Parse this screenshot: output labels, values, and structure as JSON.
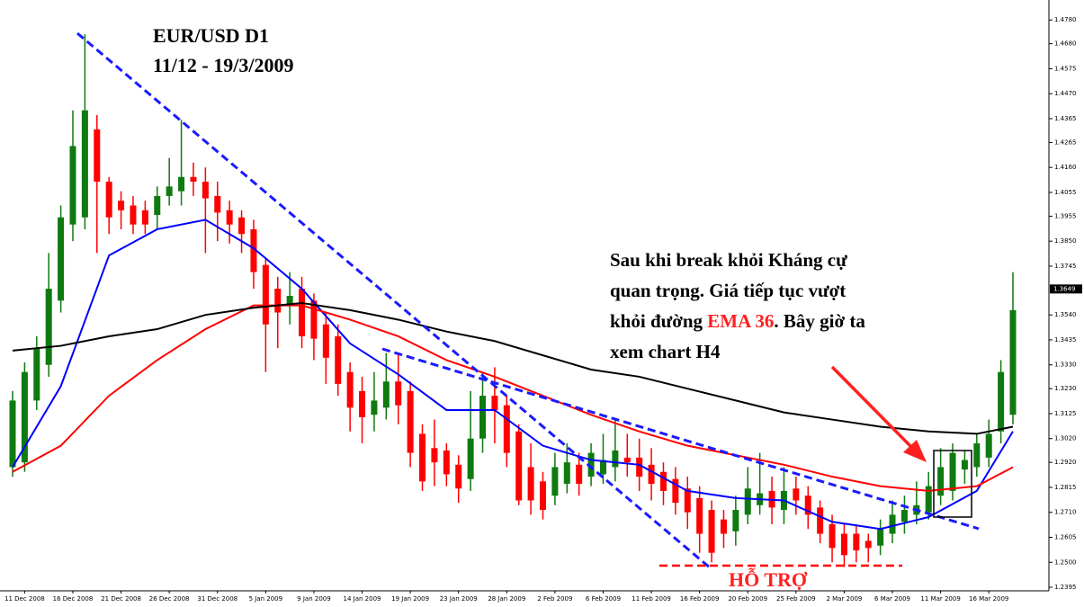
{
  "chart_data": {
    "type": "candlestick",
    "title": "EUR/USD D1",
    "subtitle": "11/12 - 19/3/2009",
    "annotation": [
      "Sau khi break khỏi Kháng cự",
      "quan trọng. Giá tiếp tục vượt",
      "khỏi đường ",
      "EMA 36",
      ". Bây giờ ta",
      "xem chart H4"
    ],
    "support_label": "HỖ TRỢ",
    "up_color": "#0f7a0f",
    "down_color": "#ff0000",
    "categories": [
      null,
      "11 Dec 2008",
      null,
      null,
      null,
      "16 Dec 2008",
      null,
      null,
      null,
      "21 Dec 2008",
      null,
      null,
      null,
      "26 Dec 2008",
      null,
      null,
      null,
      "31 Dec 2008",
      null,
      null,
      null,
      "5 Jan 2009",
      null,
      null,
      null,
      "9 Jan 2009",
      null,
      null,
      null,
      "14 Jan 2009",
      null,
      null,
      null,
      "19 Jan 2009",
      null,
      null,
      null,
      "23 Jan 2009",
      null,
      null,
      null,
      "28 Jan 2009",
      null,
      null,
      null,
      "2 Feb 2009",
      null,
      null,
      null,
      "6 Feb 2009",
      null,
      null,
      null,
      "11 Feb 2009",
      null,
      null,
      null,
      "16 Feb 2009",
      null,
      null,
      null,
      "20 Feb 2009",
      null,
      null,
      null,
      "25 Feb 2009",
      null,
      null,
      null,
      "2 Mar 2009",
      null,
      null,
      null,
      "6 Mar 2009",
      null,
      null,
      null,
      "11 Mar 2009",
      null,
      null,
      null,
      "16 Mar 2009",
      null,
      null
    ],
    "open": [
      1.29,
      1.292,
      1.318,
      1.333,
      1.36,
      1.392,
      1.395,
      1.432,
      1.41,
      1.402,
      1.4,
      1.398,
      1.396,
      1.404,
      1.406,
      1.412,
      1.41,
      1.404,
      1.398,
      1.395,
      1.39,
      1.375,
      1.365,
      1.358,
      1.365,
      1.36,
      1.35,
      1.345,
      1.33,
      1.322,
      1.312,
      1.315,
      1.326,
      1.322,
      1.304,
      1.298,
      1.297,
      1.291,
      1.285,
      1.302,
      1.32,
      1.316,
      1.305,
      1.29,
      1.284,
      1.278,
      1.283,
      1.291,
      1.286,
      1.287,
      1.29,
      1.294,
      1.294,
      1.291,
      1.288,
      1.285,
      1.281,
      1.277,
      1.272,
      1.268,
      1.263,
      1.27,
      1.274,
      1.28,
      1.272,
      1.281,
      1.278,
      1.273,
      1.266,
      1.262,
      1.262,
      1.259,
      1.257,
      1.262,
      1.267,
      1.27,
      1.271,
      1.278,
      1.28,
      1.289,
      1.29,
      1.294,
      1.305,
      1.312
    ],
    "high": [
      1.322,
      1.334,
      1.345,
      1.38,
      1.4,
      1.44,
      1.472,
      1.438,
      1.412,
      1.406,
      1.404,
      1.402,
      1.408,
      1.42,
      1.436,
      1.418,
      1.416,
      1.41,
      1.402,
      1.398,
      1.394,
      1.378,
      1.37,
      1.372,
      1.37,
      1.363,
      1.355,
      1.35,
      1.334,
      1.328,
      1.33,
      1.338,
      1.338,
      1.326,
      1.308,
      1.31,
      1.3,
      1.295,
      1.322,
      1.33,
      1.332,
      1.32,
      1.308,
      1.3,
      1.288,
      1.296,
      1.3,
      1.296,
      1.3,
      1.304,
      1.31,
      1.304,
      1.302,
      1.298,
      1.292,
      1.29,
      1.286,
      1.282,
      1.276,
      1.272,
      1.278,
      1.29,
      1.296,
      1.286,
      1.29,
      1.286,
      1.282,
      1.276,
      1.27,
      1.266,
      1.266,
      1.262,
      1.268,
      1.276,
      1.278,
      1.284,
      1.288,
      1.298,
      1.3,
      1.297,
      1.304,
      1.31,
      1.335,
      1.372
    ],
    "low": [
      1.286,
      1.288,
      1.314,
      1.328,
      1.355,
      1.385,
      1.39,
      1.38,
      1.388,
      1.39,
      1.388,
      1.388,
      1.39,
      1.4,
      1.4,
      1.404,
      1.38,
      1.385,
      1.384,
      1.38,
      1.365,
      1.33,
      1.34,
      1.35,
      1.34,
      1.335,
      1.325,
      1.32,
      1.305,
      1.3,
      1.305,
      1.31,
      1.308,
      1.29,
      1.28,
      1.282,
      1.282,
      1.275,
      1.28,
      1.296,
      1.3,
      1.29,
      1.274,
      1.27,
      1.268,
      1.274,
      1.279,
      1.278,
      1.282,
      1.283,
      1.284,
      1.286,
      1.28,
      1.276,
      1.274,
      1.27,
      1.264,
      1.254,
      1.25,
      1.256,
      1.257,
      1.266,
      1.27,
      1.266,
      1.266,
      1.27,
      1.264,
      1.258,
      1.25,
      1.248,
      1.25,
      1.25,
      1.253,
      1.258,
      1.262,
      1.266,
      1.268,
      1.274,
      1.276,
      1.283,
      1.286,
      1.29,
      1.3,
      1.308
    ],
    "close": [
      1.318,
      1.33,
      1.34,
      1.365,
      1.395,
      1.425,
      1.44,
      1.41,
      1.395,
      1.398,
      1.392,
      1.392,
      1.404,
      1.408,
      1.412,
      1.41,
      1.403,
      1.397,
      1.392,
      1.388,
      1.372,
      1.35,
      1.355,
      1.362,
      1.345,
      1.344,
      1.336,
      1.325,
      1.315,
      1.311,
      1.318,
      1.326,
      1.316,
      1.296,
      1.284,
      1.292,
      1.287,
      1.281,
      1.302,
      1.32,
      1.314,
      1.296,
      1.276,
      1.276,
      1.272,
      1.29,
      1.292,
      1.283,
      1.296,
      1.293,
      1.297,
      1.292,
      1.286,
      1.283,
      1.28,
      1.275,
      1.271,
      1.262,
      1.254,
      1.262,
      1.272,
      1.281,
      1.279,
      1.273,
      1.28,
      1.276,
      1.27,
      1.262,
      1.256,
      1.253,
      1.255,
      1.256,
      1.264,
      1.27,
      1.272,
      1.274,
      1.282,
      1.29,
      1.296,
      1.293,
      1.3,
      1.304,
      1.33,
      1.356
    ],
    "lines": [
      {
        "color": "#0000ff",
        "x": [
          0,
          4,
          8,
          12,
          16,
          20,
          24,
          28,
          32,
          36,
          40,
          44,
          48,
          52,
          56,
          60,
          64,
          68,
          72,
          76,
          80,
          83
        ],
        "values": [
          1.29,
          1.324,
          1.379,
          1.39,
          1.394,
          1.382,
          1.365,
          1.342,
          1.329,
          1.314,
          1.314,
          1.299,
          1.293,
          1.291,
          1.28,
          1.277,
          1.276,
          1.267,
          1.264,
          1.269,
          1.28,
          1.305
        ]
      },
      {
        "color": "#ff0000",
        "x": [
          0,
          4,
          8,
          12,
          16,
          20,
          24,
          28,
          32,
          36,
          40,
          44,
          48,
          52,
          56,
          60,
          64,
          68,
          72,
          76,
          80,
          83
        ],
        "values": [
          1.288,
          1.299,
          1.32,
          1.335,
          1.348,
          1.358,
          1.358,
          1.352,
          1.345,
          1.335,
          1.328,
          1.32,
          1.312,
          1.305,
          1.299,
          1.295,
          1.291,
          1.286,
          1.282,
          1.28,
          1.282,
          1.29
        ]
      },
      {
        "color": "#000000",
        "x": [
          0,
          4,
          8,
          12,
          16,
          20,
          24,
          28,
          32,
          36,
          40,
          44,
          48,
          52,
          56,
          60,
          64,
          68,
          72,
          76,
          80,
          83
        ],
        "values": [
          1.339,
          1.341,
          1.345,
          1.348,
          1.354,
          1.357,
          1.359,
          1.356,
          1.352,
          1.347,
          1.343,
          1.337,
          1.331,
          1.328,
          1.323,
          1.318,
          1.313,
          1.31,
          1.307,
          1.305,
          1.304,
          1.307
        ]
      }
    ],
    "ylim": [
      1.238,
      1.4845
    ],
    "yticks": [
      {
        "value": 1.478,
        "label": "1.4780"
      },
      {
        "value": 1.468,
        "label": "1.4680"
      },
      {
        "value": 1.4575,
        "label": "1.4575"
      },
      {
        "value": 1.447,
        "label": "1.4470"
      },
      {
        "value": 1.4365,
        "label": "1.4365"
      },
      {
        "value": 1.4265,
        "label": "1.4265"
      },
      {
        "value": 1.416,
        "label": "1.4160"
      },
      {
        "value": 1.4055,
        "label": "1.4055"
      },
      {
        "value": 1.3955,
        "label": "1.3955"
      },
      {
        "value": 1.385,
        "label": "1.3850"
      },
      {
        "value": 1.3745,
        "label": "1.3745"
      },
      {
        "value": 1.354,
        "label": "1.3540"
      },
      {
        "value": 1.3435,
        "label": "1.3435"
      },
      {
        "value": 1.333,
        "label": "1.3330"
      },
      {
        "value": 1.323,
        "label": "1.3230"
      },
      {
        "value": 1.3125,
        "label": "1.3125"
      },
      {
        "value": 1.302,
        "label": "1.3020"
      },
      {
        "value": 1.292,
        "label": "1.2920"
      },
      {
        "value": 1.2815,
        "label": "1.2815"
      },
      {
        "value": 1.271,
        "label": "1.2710"
      },
      {
        "value": 1.2605,
        "label": "1.2605"
      },
      {
        "value": 1.25,
        "label": "1.2500"
      },
      {
        "value": 1.2395,
        "label": "1.2395"
      }
    ],
    "price_label": {
      "value": 1.3649,
      "label": "1.3649"
    }
  }
}
